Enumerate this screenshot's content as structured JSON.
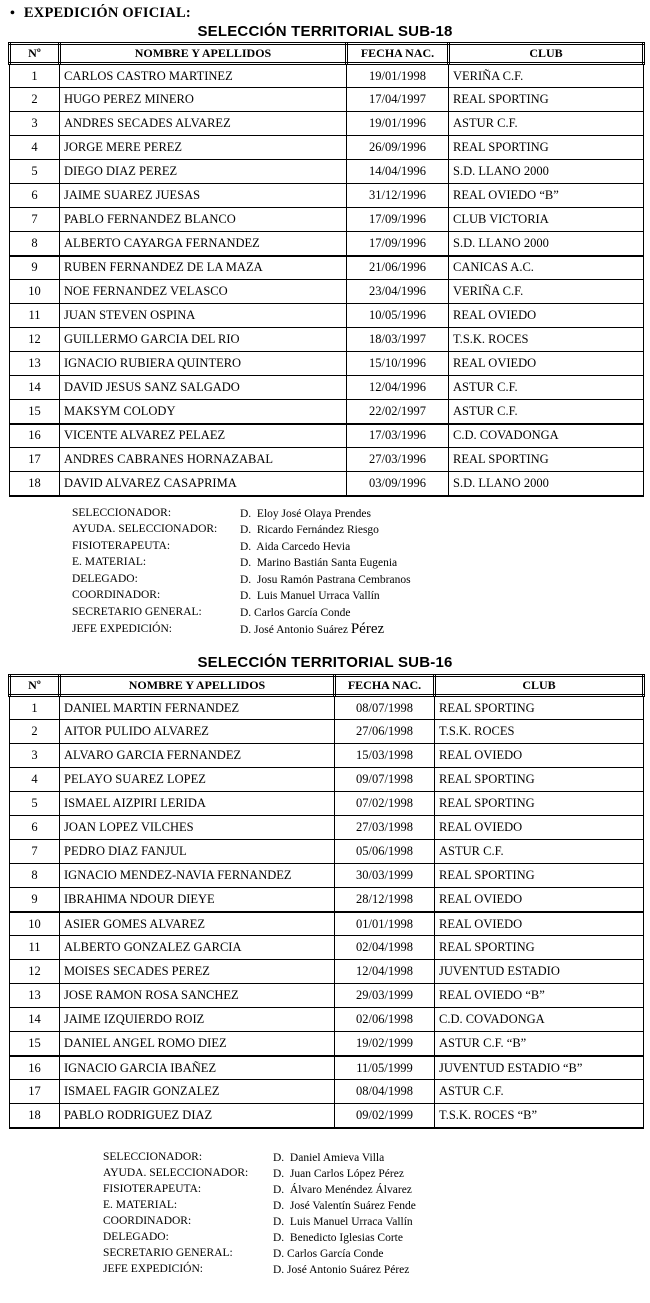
{
  "page": {
    "bullet": "•",
    "heading": "EXPEDICIÓN OFICIAL:"
  },
  "tables": [
    {
      "title": "SELECCIÓN TERRITORIAL SUB-18",
      "columns": [
        "Nº",
        "NOMBRE Y APELLIDOS",
        "FECHA NAC.",
        "CLUB"
      ],
      "rows": [
        {
          "num": "1",
          "name": "CARLOS CASTRO MARTINEZ",
          "birth": "19/01/1998",
          "club": "VERIÑA C.F."
        },
        {
          "num": "2",
          "name": "HUGO PEREZ MINERO",
          "birth": "17/04/1997",
          "club": "REAL SPORTING"
        },
        {
          "num": "3",
          "name": "ANDRES SECADES ALVAREZ",
          "birth": "19/01/1996",
          "club": "ASTUR C.F."
        },
        {
          "num": "4",
          "name": "JORGE MERE PEREZ",
          "birth": "26/09/1996",
          "club": "REAL SPORTING"
        },
        {
          "num": "5",
          "name": "DIEGO DIAZ PEREZ",
          "birth": "14/04/1996",
          "club": "S.D. LLANO 2000"
        },
        {
          "num": "6",
          "name": "JAIME SUAREZ JUESAS",
          "birth": "31/12/1996",
          "club": "REAL OVIEDO “B”"
        },
        {
          "num": "7",
          "name": "PABLO FERNANDEZ BLANCO",
          "birth": "17/09/1996",
          "club": "CLUB VICTORIA"
        },
        {
          "num": "8",
          "name": "ALBERTO CAYARGA FERNANDEZ",
          "birth": "17/09/1996",
          "club": "S.D. LLANO 2000"
        },
        {
          "num": "9",
          "name": "RUBEN FERNANDEZ DE LA MAZA",
          "birth": "21/06/1996",
          "club": "CANICAS A.C."
        },
        {
          "num": "10",
          "name": "NOE FERNANDEZ VELASCO",
          "birth": "23/04/1996",
          "club": "VERIÑA C.F."
        },
        {
          "num": "11",
          "name": "JUAN STEVEN OSPINA",
          "birth": "10/05/1996",
          "club": "REAL OVIEDO"
        },
        {
          "num": "12",
          "name": "GUILLERMO GARCIA DEL RIO",
          "birth": "18/03/1997",
          "club": "T.S.K. ROCES"
        },
        {
          "num": "13",
          "name": "IGNACIO RUBIERA QUINTERO",
          "birth": "15/10/1996",
          "club": "REAL OVIEDO"
        },
        {
          "num": "14",
          "name": "DAVID JESUS SANZ SALGADO",
          "birth": "12/04/1996",
          "club": "ASTUR C.F."
        },
        {
          "num": "15",
          "name": "MAKSYM COLODY",
          "birth": "22/02/1997",
          "club": "ASTUR C.F."
        },
        {
          "num": "16",
          "name": "VICENTE ALVAREZ PELAEZ",
          "birth": "17/03/1996",
          "club": "C.D. COVADONGA"
        },
        {
          "num": "17",
          "name": "ANDRES CABRANES HORNAZABAL",
          "birth": "27/03/1996",
          "club": "REAL SPORTING"
        },
        {
          "num": "18",
          "name": "DAVID ALVAREZ CASAPRIMA",
          "birth": "03/09/1996",
          "club": "S.D. LLANO 2000"
        }
      ],
      "staff": [
        {
          "role": "SELECCIONADOR:",
          "person": "D.  Eloy José Olaya Prendes"
        },
        {
          "role": "AYUDA. SELECCIONADOR:",
          "person": "D.  Ricardo Fernández Riesgo"
        },
        {
          "role": "FISIOTERAPEUTA:",
          "person": "D.  Aida Carcedo Hevia"
        },
        {
          "role": "E. MATERIAL:",
          "person": "D.  Marino Bastián Santa Eugenia"
        },
        {
          "role": "DELEGADO:",
          "person": "D.  Josu Ramón Pastrana Cembranos"
        },
        {
          "role": "COORDINADOR:",
          "person": "D.  Luis Manuel Urraca Vallín"
        },
        {
          "role": "SECRETARIO GENERAL:",
          "person": "D. Carlos García Conde"
        },
        {
          "role": "JEFE EXPEDICIÓN:",
          "person": "D. José Antonio Suárez ",
          "person_big": "Pérez"
        }
      ]
    },
    {
      "title": "SELECCIÓN TERRITORIAL SUB-16",
      "columns": [
        "Nº",
        "NOMBRE Y APELLIDOS",
        "FECHA NAC.",
        "CLUB"
      ],
      "rows": [
        {
          "num": "1",
          "name": "DANIEL MARTIN FERNANDEZ",
          "birth": "08/07/1998",
          "club": "REAL SPORTING"
        },
        {
          "num": "2",
          "name": "AITOR PULIDO ALVAREZ",
          "birth": "27/06/1998",
          "club": "T.S.K. ROCES"
        },
        {
          "num": "3",
          "name": "ALVARO GARCIA FERNANDEZ",
          "birth": "15/03/1998",
          "club": "REAL OVIEDO"
        },
        {
          "num": "4",
          "name": "PELAYO SUAREZ LOPEZ",
          "birth": "09/07/1998",
          "club": "REAL SPORTING"
        },
        {
          "num": "5",
          "name": "ISMAEL AIZPIRI LERIDA",
          "birth": "07/02/1998",
          "club": "REAL SPORTING"
        },
        {
          "num": "6",
          "name": "JOAN LOPEZ VILCHES",
          "birth": "27/03/1998",
          "club": "REAL OVIEDO"
        },
        {
          "num": "7",
          "name": "PEDRO DIAZ FANJUL",
          "birth": "05/06/1998",
          "club": "ASTUR C.F."
        },
        {
          "num": "8",
          "name": "IGNACIO MENDEZ-NAVIA FERNANDEZ",
          "birth": "30/03/1999",
          "club": "REAL SPORTING"
        },
        {
          "num": "9",
          "name": "IBRAHIMA NDOUR DIEYE",
          "birth": "28/12/1998",
          "club": "REAL OVIEDO"
        },
        {
          "num": "10",
          "name": "ASIER GOMES ALVAREZ",
          "birth": "01/01/1998",
          "club": "REAL OVIEDO"
        },
        {
          "num": "11",
          "name": "ALBERTO GONZALEZ GARCIA",
          "birth": "02/04/1998",
          "club": "REAL SPORTING"
        },
        {
          "num": "12",
          "name": "MOISES SECADES PEREZ",
          "birth": "12/04/1998",
          "club": "JUVENTUD ESTADIO"
        },
        {
          "num": "13",
          "name": "JOSE RAMON ROSA SANCHEZ",
          "birth": "29/03/1999",
          "club": "REAL OVIEDO “B”"
        },
        {
          "num": "14",
          "name": "JAIME IZQUIERDO ROIZ",
          "birth": "02/06/1998",
          "club": "C.D. COVADONGA"
        },
        {
          "num": "15",
          "name": "DANIEL ANGEL ROMO DIEZ",
          "birth": "19/02/1999",
          "club": "ASTUR C.F. “B”"
        },
        {
          "num": "16",
          "name": "IGNACIO GARCIA IBAÑEZ",
          "birth": "11/05/1999",
          "club": "JUVENTUD ESTADIO “B”"
        },
        {
          "num": "17",
          "name": "ISMAEL FAGIR GONZALEZ",
          "birth": "08/04/1998",
          "club": "ASTUR C.F."
        },
        {
          "num": "18",
          "name": "PABLO RODRIGUEZ DIAZ",
          "birth": "09/02/1999",
          "club": "T.S.K. ROCES “B”"
        }
      ],
      "staff": [
        {
          "role": "SELECCIONADOR:",
          "person": "D.  Daniel Amieva Villa"
        },
        {
          "role": "AYUDA. SELECCIONADOR:",
          "person": "D.  Juan Carlos López Pérez"
        },
        {
          "role": "FISIOTERAPEUTA:",
          "person": "D.  Álvaro Menéndez Álvarez"
        },
        {
          "role": "E. MATERIAL:",
          "person": "D.  José Valentín Suárez Fende"
        },
        {
          "role": "COORDINADOR:",
          "person": "D.  Luis Manuel Urraca Vallín"
        },
        {
          "role": "DELEGADO:",
          "person": "D.  Benedicto Iglesias Corte"
        },
        {
          "role": "SECRETARIO GENERAL:",
          "person": "D. Carlos García Conde"
        },
        {
          "role": "JEFE EXPEDICIÓN:",
          "person": "D. José Antonio Suárez Pérez"
        }
      ]
    }
  ]
}
